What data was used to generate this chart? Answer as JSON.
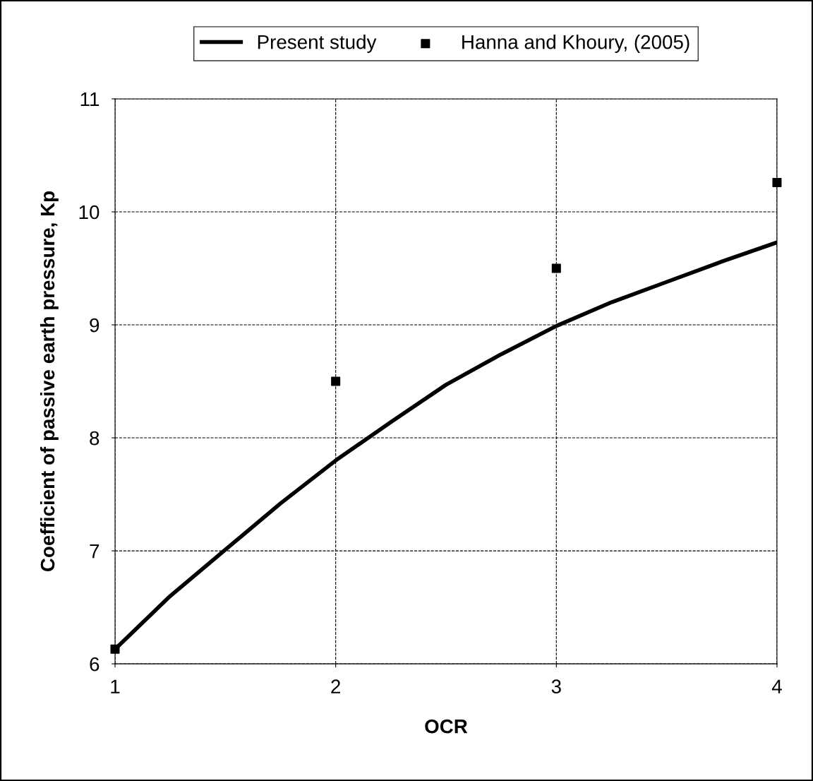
{
  "chart_data": {
    "type": "line",
    "xlabel": "OCR",
    "ylabel": "Coefficient of passive earth pressure, Kp",
    "series": [
      {
        "name": "Present study",
        "color": "#000000",
        "marker": "none",
        "line_style": "solid",
        "x": [
          1,
          1.25,
          1.5,
          1.75,
          2,
          2.25,
          2.5,
          2.75,
          3,
          3.25,
          3.5,
          3.75,
          4
        ],
        "values": [
          6.13,
          6.6,
          7.01,
          7.42,
          7.8,
          8.14,
          8.47,
          8.74,
          8.99,
          9.2,
          9.38,
          9.56,
          9.73
        ]
      },
      {
        "name": "Hanna and Khoury, (2005)",
        "type": "scatter",
        "color": "#000000",
        "marker": "square",
        "x": [
          1,
          2,
          3,
          4
        ],
        "values": [
          6.13,
          8.5,
          9.5,
          10.26
        ]
      }
    ],
    "xlim": [
      1,
      4
    ],
    "xticks": [
      1,
      2,
      3,
      4
    ],
    "ylim": [
      6,
      11
    ],
    "yticks": [
      6,
      7,
      8,
      9,
      10,
      11
    ],
    "grid": true,
    "legend": "top"
  }
}
